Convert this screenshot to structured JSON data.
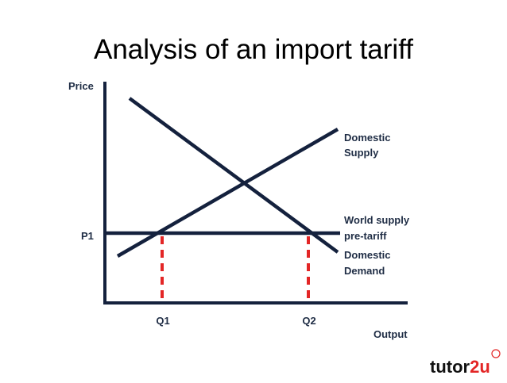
{
  "title": "Analysis of an import tariff",
  "axes": {
    "y_label": "Price",
    "x_label": "Output"
  },
  "labels": {
    "p1": "P1",
    "q1": "Q1",
    "q2": "Q2",
    "domestic_supply": [
      "Domestic",
      "Supply"
    ],
    "world_supply": [
      "World supply",
      "pre-tariff"
    ],
    "domestic_demand": [
      "Domestic",
      "Demand"
    ]
  },
  "logo": {
    "text": "tutor",
    "accent": "2u"
  }
}
